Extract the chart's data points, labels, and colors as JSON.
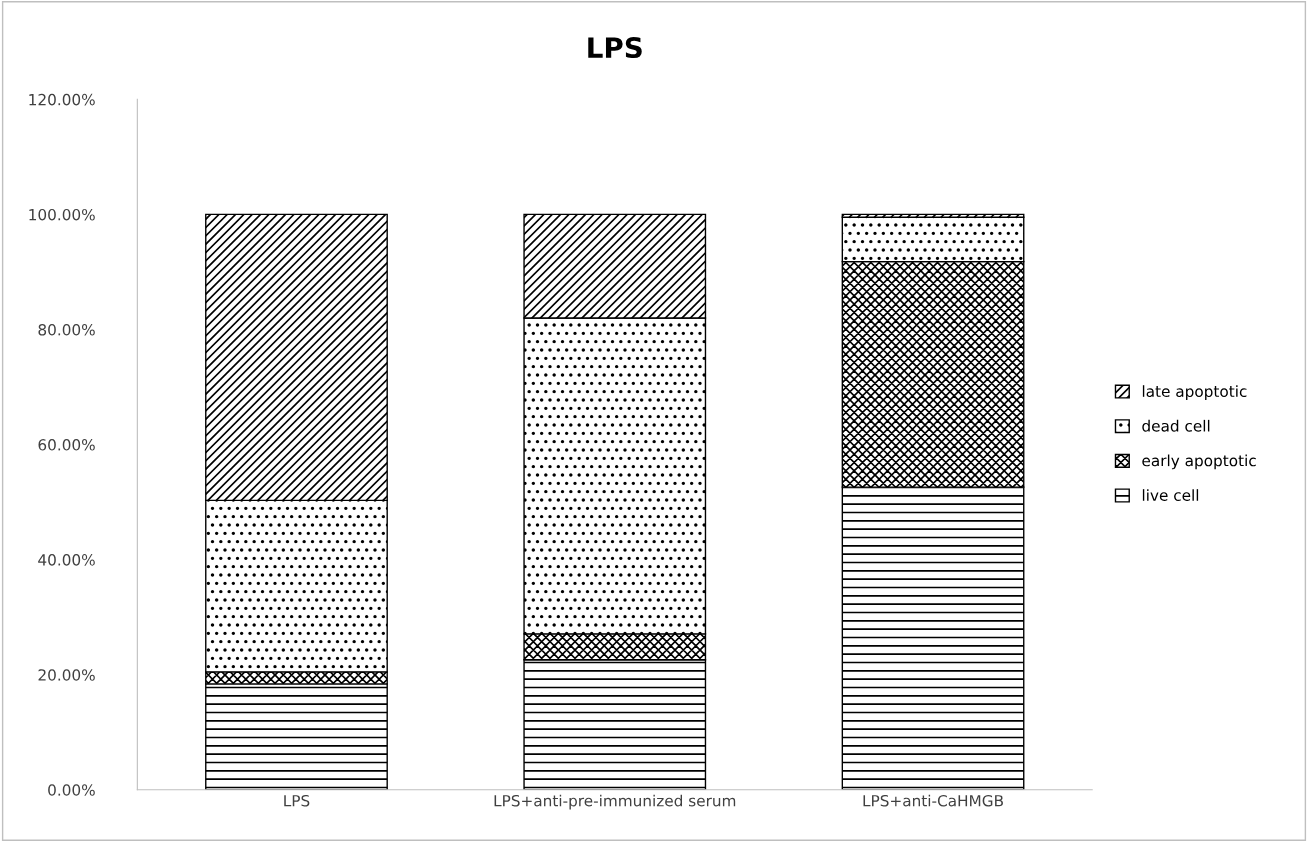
{
  "chart_data": {
    "type": "bar",
    "title": "LPS",
    "stacked": true,
    "legend": "right",
    "grid": false,
    "categories": [
      "LPS",
      "LPS+anti-pre-immunized serum",
      "LPS+anti-CaHMGB"
    ],
    "series": [
      {
        "name": "live cell",
        "color": "#000000",
        "values": [
          18.4,
          22.6,
          52.6
        ]
      },
      {
        "name": "early apoptotic",
        "color": "#000000",
        "values": [
          2.1,
          4.5,
          39.2
        ]
      },
      {
        "name": "dead cell",
        "color": "#000000",
        "values": [
          29.8,
          54.9,
          7.7
        ]
      },
      {
        "name": "late apoptotic",
        "color": "#000000",
        "values": [
          49.7,
          18.0,
          0.5
        ]
      }
    ],
    "ylim": [
      0,
      120
    ],
    "yticks": [
      {
        "value": 0,
        "label": "0.00%"
      },
      {
        "value": 20,
        "label": "20.00%"
      },
      {
        "value": 40,
        "label": "40.00%"
      },
      {
        "value": 60,
        "label": "60.00%"
      },
      {
        "value": 80,
        "label": "80.00%"
      },
      {
        "value": 100,
        "label": "100.00%"
      },
      {
        "value": 120,
        "label": "120.00%"
      }
    ]
  }
}
